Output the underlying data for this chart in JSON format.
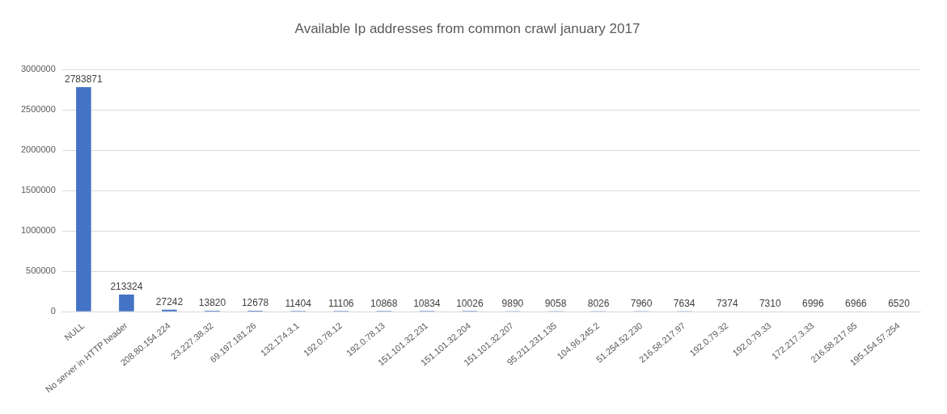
{
  "chart_data": {
    "type": "bar",
    "title": "Available Ip addresses from common crawl january 2017",
    "categories": [
      "NULL",
      "No server in HTTP header",
      "208.80.154.224",
      "23.227.38.32",
      "69.197.181.26",
      "132.174.3.1",
      "192.0.78.12",
      "192.0.78.13",
      "151.101.32.231",
      "151.101.32.204",
      "151.101.32.207",
      "95.211.231.135",
      "104.96.245.2",
      "51.254.52.230",
      "216.58.217.97",
      "192.0.79.32",
      "192.0.79.33",
      "172.217.3.33",
      "216.58.217.65",
      "195.154.57.254"
    ],
    "values": [
      2783871,
      213324,
      27242,
      13820,
      12678,
      11404,
      11106,
      10868,
      10834,
      10026,
      9890,
      9058,
      8026,
      7960,
      7634,
      7374,
      7310,
      6996,
      6966,
      6520
    ],
    "color": "#4472c4",
    "ylim": [
      0,
      3000000
    ],
    "yticks": [
      0,
      500000,
      1000000,
      1500000,
      2000000,
      2500000,
      3000000
    ],
    "grid": "y",
    "legend": false,
    "data_labels": true
  }
}
